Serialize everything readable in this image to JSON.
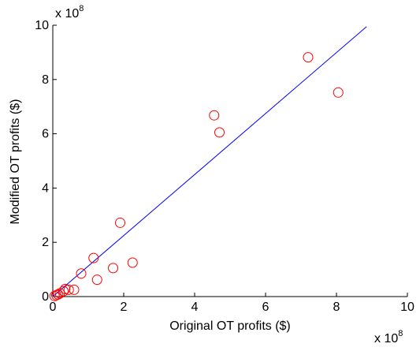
{
  "chart_data": {
    "type": "scatter",
    "title": "",
    "xlabel": "Original OT profits ($)",
    "ylabel": "Modified OT profits ($)",
    "x_multiplier": {
      "base": "x 10",
      "exponent": "8"
    },
    "y_multiplier": {
      "base": "x 10",
      "exponent": "8"
    },
    "xlim": [
      0,
      10
    ],
    "ylim": [
      0,
      10
    ],
    "xticks": [
      0,
      2,
      4,
      6,
      8,
      10
    ],
    "yticks": [
      0,
      2,
      4,
      6,
      8,
      10
    ],
    "xtick_labels": [
      "0",
      "2",
      "4",
      "6",
      "8",
      "10"
    ],
    "ytick_labels": [
      "0",
      "2",
      "4",
      "6",
      "8",
      "10"
    ],
    "grid": false,
    "legend": "none",
    "marker_color": "#ff0000",
    "line_color": "#0000ff",
    "points": [
      {
        "x": 0.05,
        "y": 0.02
      },
      {
        "x": 0.1,
        "y": 0.05
      },
      {
        "x": 0.15,
        "y": 0.08
      },
      {
        "x": 0.2,
        "y": 0.12
      },
      {
        "x": 0.3,
        "y": 0.2
      },
      {
        "x": 0.35,
        "y": 0.28
      },
      {
        "x": 0.45,
        "y": 0.25
      },
      {
        "x": 0.6,
        "y": 0.25
      },
      {
        "x": 0.8,
        "y": 0.85
      },
      {
        "x": 1.15,
        "y": 1.42
      },
      {
        "x": 1.25,
        "y": 0.62
      },
      {
        "x": 1.7,
        "y": 1.05
      },
      {
        "x": 1.9,
        "y": 2.72
      },
      {
        "x": 2.25,
        "y": 1.25
      },
      {
        "x": 4.55,
        "y": 6.68
      },
      {
        "x": 4.7,
        "y": 6.05
      },
      {
        "x": 7.2,
        "y": 8.82
      },
      {
        "x": 8.05,
        "y": 7.52
      }
    ],
    "fit_line": {
      "x": [
        0,
        8.85
      ],
      "y": [
        0,
        9.95
      ]
    }
  }
}
